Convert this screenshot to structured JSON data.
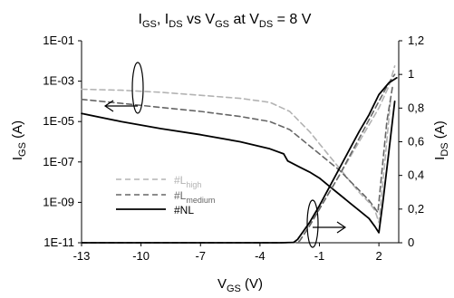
{
  "chart_data": {
    "type": "line",
    "title": {
      "p1": "I",
      "s1": "GS",
      "p2": ", I",
      "s2": "DS",
      "p3": " vs V",
      "s3": "GS",
      "p4": " at V",
      "s4": "DS",
      "p5": " = 8 V"
    },
    "xlabel": {
      "main": "V",
      "sub": "GS",
      "unit": " (V)"
    },
    "ylabel_left": {
      "main": "I",
      "sub": "GS",
      "unit": " (A)"
    },
    "ylabel_right": {
      "main": "I",
      "sub": "DS",
      "unit": " (A)"
    },
    "xlim": [
      -13,
      3
    ],
    "x_ticks": [
      -13,
      -10,
      -7,
      -4,
      -1,
      2
    ],
    "x_tick_labels": [
      "-13",
      "-10",
      "-7",
      "-4",
      "-1",
      "2"
    ],
    "ylim_left_log10": [
      -11,
      -1
    ],
    "y_left_ticks_log10": [
      -1,
      -3,
      -5,
      -7,
      -9,
      -11
    ],
    "y_left_tick_labels": [
      "1E-01",
      "1E-03",
      "1E-05",
      "1E-07",
      "1E-09",
      "1E-11"
    ],
    "ylim_right": [
      0,
      1.2
    ],
    "y_right_ticks": [
      1.2,
      1,
      0.8,
      0.6,
      0.4,
      0.2,
      0
    ],
    "y_right_tick_labels": [
      "1,2",
      "1",
      "0,8",
      "0,6",
      "0,4",
      "0,2",
      "0"
    ],
    "legend_position": "lower-left",
    "legend": [
      {
        "series": "L_high",
        "main": "#L",
        "sub": "high",
        "color": "#b3b3b3"
      },
      {
        "series": "L_medium",
        "main": "#L",
        "sub": "medium",
        "color": "#666666"
      },
      {
        "series": "NL",
        "main": "#NL",
        "sub": "",
        "color": "#000000"
      }
    ],
    "series": [
      {
        "id": "L_high",
        "axis": "left",
        "color": "#b3b3b3",
        "dash": true,
        "x": [
          -13,
          -11,
          -9,
          -7,
          -5,
          -3.5,
          -2.5,
          -2,
          -1.5,
          -1,
          -0.5,
          0,
          0.5,
          1,
          1.5,
          1.8,
          2.0,
          2.3,
          2.6
        ],
        "log10_y": [
          -3.4,
          -3.45,
          -3.55,
          -3.7,
          -3.85,
          -4.05,
          -4.5,
          -5.0,
          -5.5,
          -6.1,
          -6.7,
          -7.3,
          -7.9,
          -8.5,
          -9.0,
          -9.4,
          -10.0,
          -7.0,
          -3.8
        ]
      },
      {
        "id": "L_medium",
        "axis": "left",
        "color": "#666666",
        "dash": true,
        "x": [
          -13,
          -11,
          -9,
          -7,
          -5,
          -3.5,
          -2.5,
          -2,
          -1.5,
          -1,
          -0.5,
          0,
          0.5,
          1,
          1.5,
          1.8,
          1.95,
          2.1,
          2.4,
          2.7
        ],
        "log10_y": [
          -3.9,
          -4.1,
          -4.3,
          -4.5,
          -4.75,
          -5.0,
          -5.4,
          -5.8,
          -6.2,
          -6.6,
          -7.0,
          -7.4,
          -7.9,
          -8.4,
          -8.9,
          -9.3,
          -9.5,
          -8.0,
          -5.0,
          -3.2
        ]
      },
      {
        "id": "NL",
        "axis": "left",
        "color": "#000000",
        "dash": false,
        "x": [
          -13,
          -11,
          -9,
          -7,
          -5,
          -3.5,
          -2.8,
          -2.6,
          -2.4,
          -2,
          -1.5,
          -1,
          -0.5,
          0,
          0.5,
          1,
          1.5,
          1.8,
          2.0,
          2.2,
          2.5,
          2.8
        ],
        "log10_y": [
          -4.6,
          -5.0,
          -5.35,
          -5.65,
          -6.0,
          -6.35,
          -6.6,
          -6.95,
          -7.05,
          -7.25,
          -7.5,
          -7.8,
          -8.2,
          -8.6,
          -9.0,
          -9.4,
          -9.8,
          -10.2,
          -10.5,
          -9.0,
          -6.5,
          -4.0
        ]
      },
      {
        "id": "L_high_IDS",
        "axis": "right",
        "color": "#b3b3b3",
        "dash": true,
        "x": [
          -13,
          -3,
          -2.2,
          -2.0,
          -1.5,
          -1,
          -0.5,
          0,
          0.5,
          1,
          1.5,
          2,
          2.5,
          2.8
        ],
        "y": [
          0,
          0,
          0.002,
          0.01,
          0.1,
          0.2,
          0.3,
          0.4,
          0.5,
          0.6,
          0.7,
          0.8,
          0.93,
          1.05
        ]
      },
      {
        "id": "L_medium_IDS",
        "axis": "right",
        "color": "#666666",
        "dash": true,
        "x": [
          -13,
          -3,
          -2.2,
          -2.0,
          -1.5,
          -1,
          -0.5,
          0,
          0.5,
          1,
          1.5,
          2,
          2.5,
          2.8
        ],
        "y": [
          0,
          0,
          0.002,
          0.01,
          0.1,
          0.2,
          0.3,
          0.4,
          0.51,
          0.62,
          0.73,
          0.84,
          0.95,
          1.0
        ]
      },
      {
        "id": "NL_IDS",
        "axis": "right",
        "color": "#000000",
        "dash": false,
        "x": [
          -13,
          -3,
          -2.3,
          -2.1,
          -1.5,
          -1,
          -0.5,
          0,
          0.5,
          1,
          1.5,
          2,
          2.5,
          2.9
        ],
        "y": [
          0,
          0,
          0.002,
          0.02,
          0.12,
          0.22,
          0.33,
          0.44,
          0.55,
          0.66,
          0.76,
          0.88,
          0.95,
          0.98
        ]
      }
    ]
  }
}
